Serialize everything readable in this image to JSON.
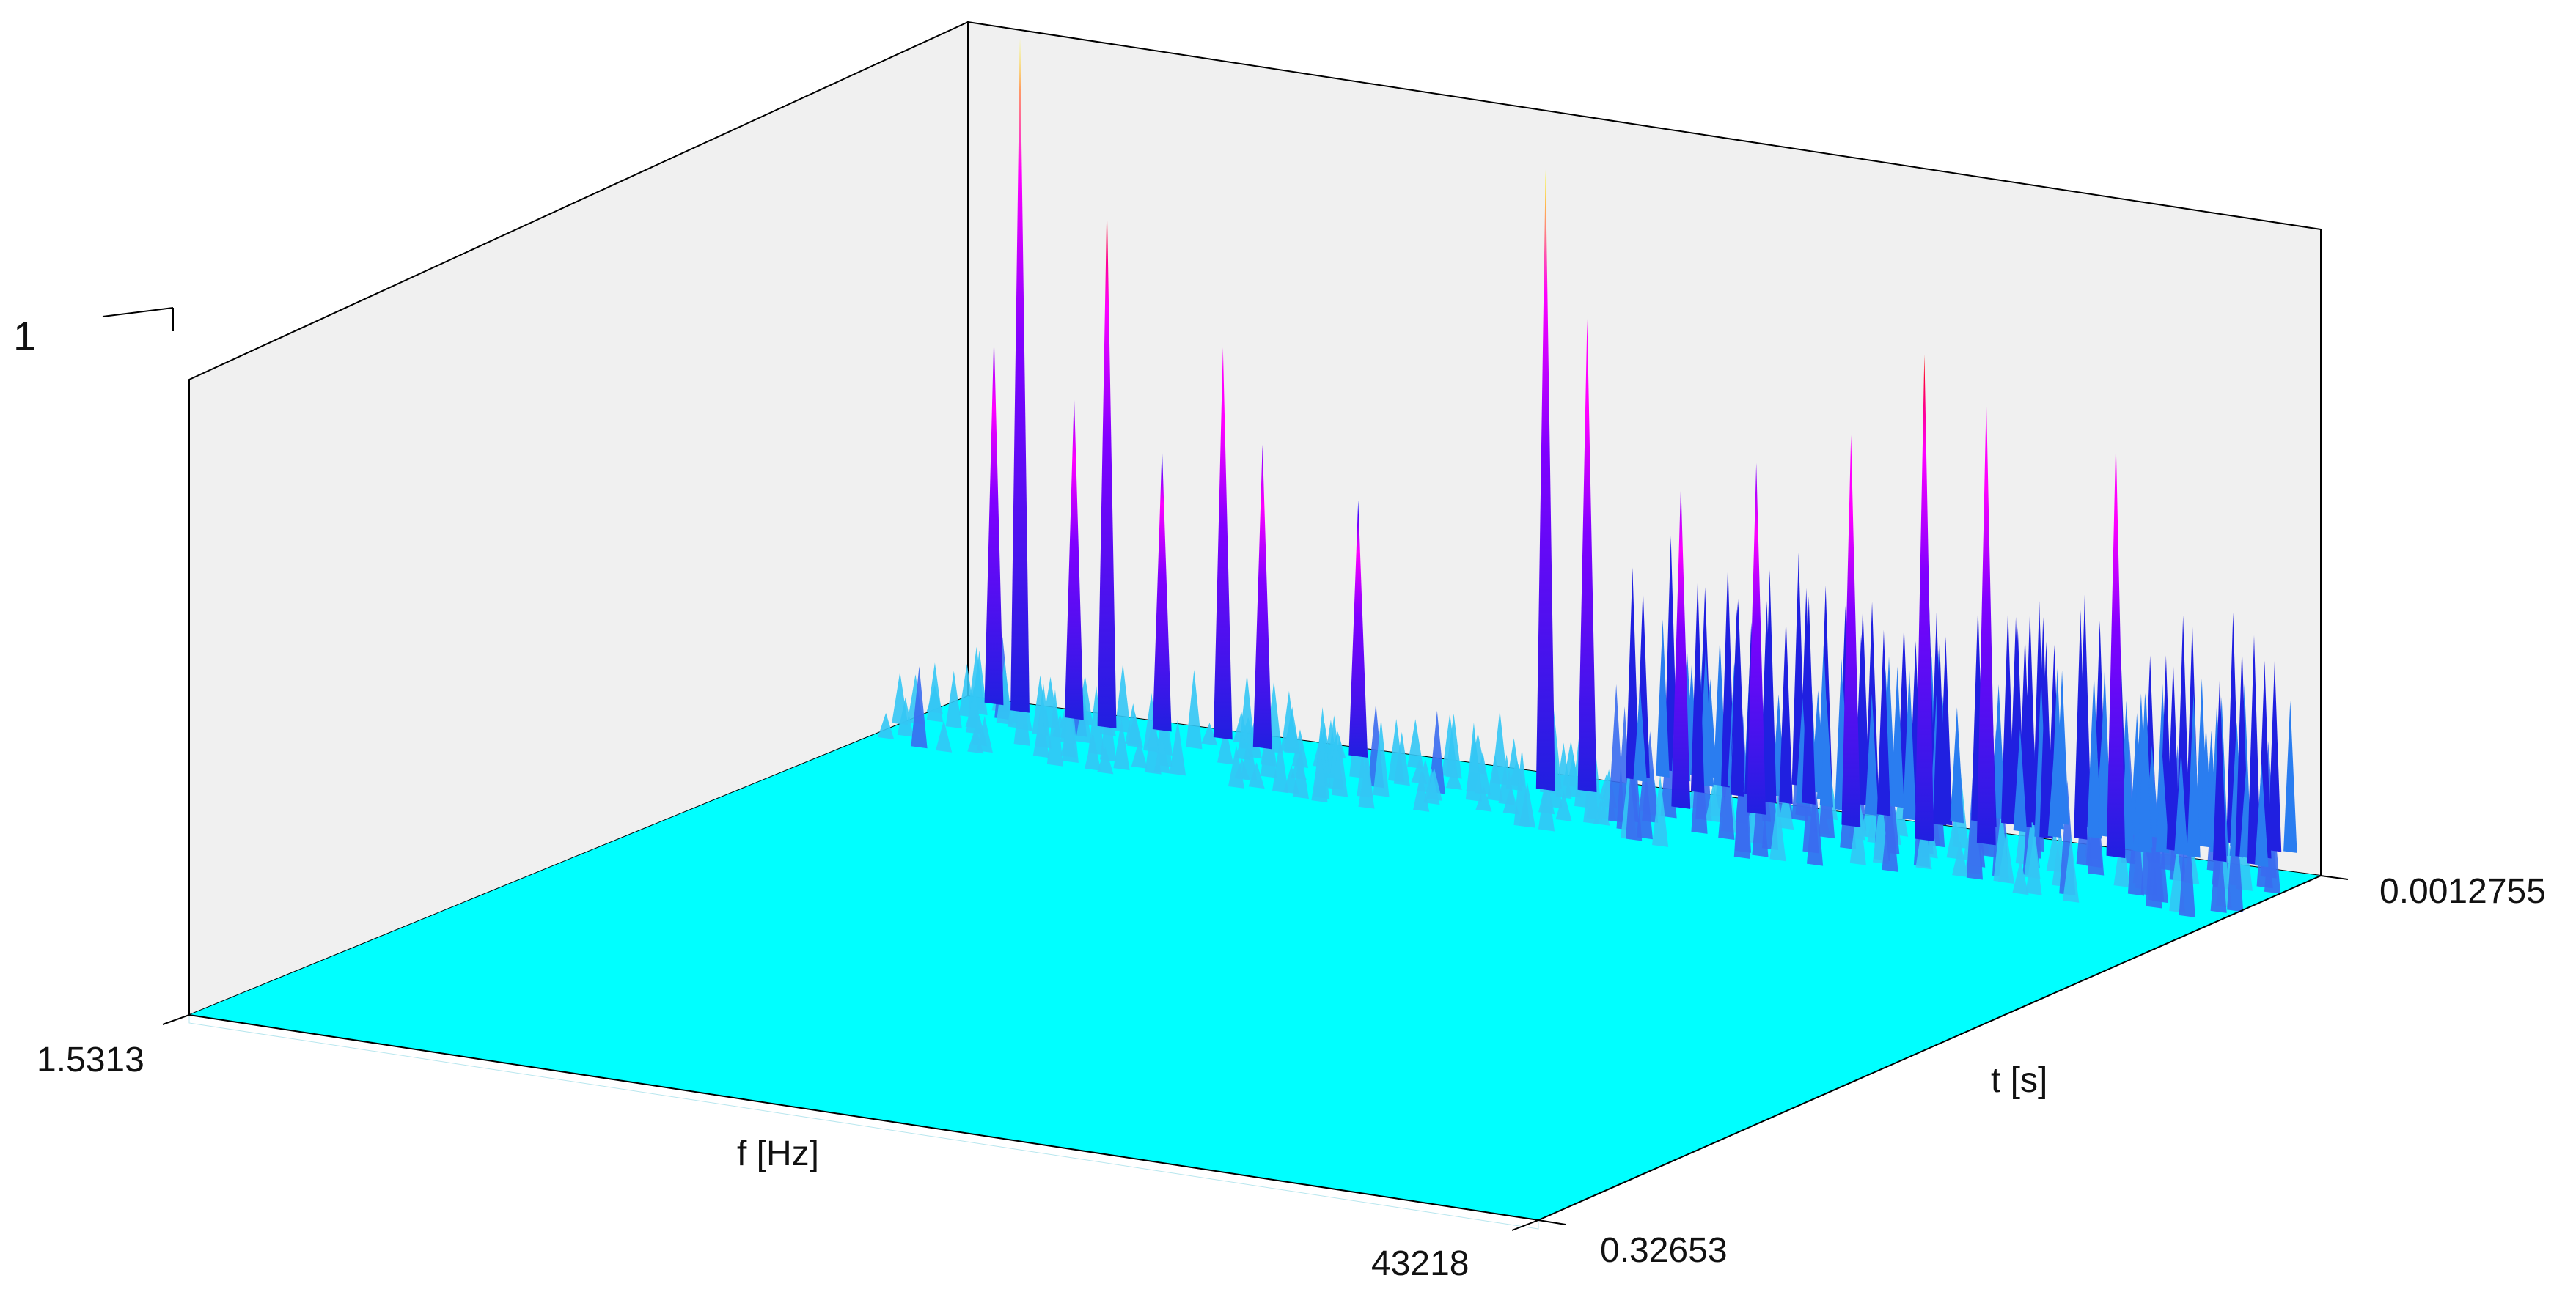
{
  "chart_data": {
    "type": "surface",
    "title": "",
    "z_axis": {
      "tick_labels": [
        "1"
      ]
    },
    "x_axis": {
      "label": "f [Hz]",
      "tick_labels": [
        "1.5313",
        "43218"
      ],
      "range": [
        1.5313,
        43218
      ]
    },
    "y_axis": {
      "label": "t [s]",
      "tick_labels": [
        "0.0012755",
        "0.32653"
      ],
      "range": [
        0.0012755,
        0.32653
      ]
    },
    "colormap": [
      "#00ffff",
      "#3399ff",
      "#0000ff",
      "#8000ff",
      "#ff00ff",
      "#ff0000",
      "#ffff00"
    ],
    "surface": {
      "baseline_color": "#00ffff",
      "noise_fraction_f": 0.53,
      "peaks": [
        {
          "f_frac": 0.025,
          "t_frac": 0.01,
          "z": 0.55
        },
        {
          "f_frac": 0.05,
          "t_frac": 0.02,
          "z": 1.0
        },
        {
          "f_frac": 0.09,
          "t_frac": 0.02,
          "z": 0.48
        },
        {
          "f_frac": 0.12,
          "t_frac": 0.03,
          "z": 0.78
        },
        {
          "f_frac": 0.155,
          "t_frac": 0.02,
          "z": 0.42
        },
        {
          "f_frac": 0.2,
          "t_frac": 0.02,
          "z": 0.58
        },
        {
          "f_frac": 0.235,
          "t_frac": 0.03,
          "z": 0.45
        },
        {
          "f_frac": 0.3,
          "t_frac": 0.02,
          "z": 0.38
        },
        {
          "f_frac": 0.45,
          "t_frac": 0.04,
          "z": 0.92
        },
        {
          "f_frac": 0.475,
          "t_frac": 0.03,
          "z": 0.7
        },
        {
          "f_frac": 0.55,
          "t_frac": 0.04,
          "z": 0.48
        },
        {
          "f_frac": 0.6,
          "t_frac": 0.03,
          "z": 0.52
        },
        {
          "f_frac": 0.67,
          "t_frac": 0.03,
          "z": 0.58
        },
        {
          "f_frac": 0.73,
          "t_frac": 0.04,
          "z": 0.72
        },
        {
          "f_frac": 0.77,
          "t_frac": 0.03,
          "z": 0.66
        },
        {
          "f_frac": 0.86,
          "t_frac": 0.02,
          "z": 0.62
        }
      ]
    }
  }
}
